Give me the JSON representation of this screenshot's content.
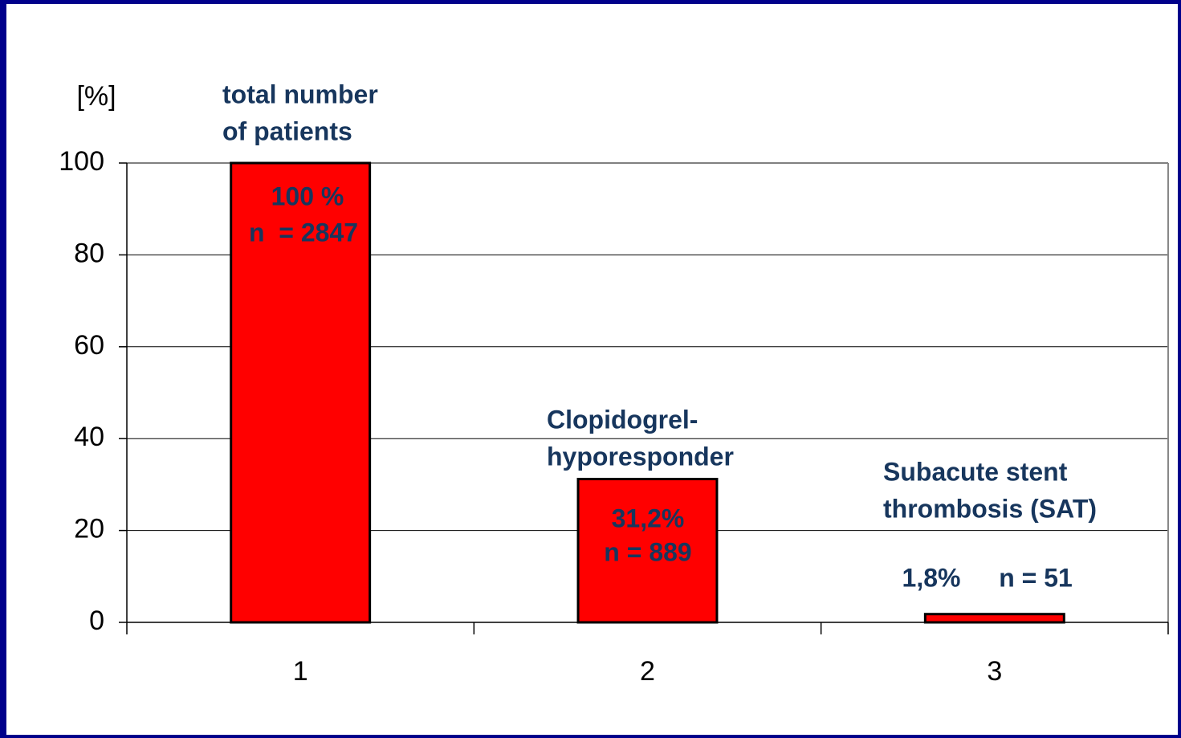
{
  "chart_data": {
    "type": "bar",
    "y_label": "[%]",
    "categories": [
      "1",
      "2",
      "3"
    ],
    "values": [
      100,
      31.2,
      1.8
    ],
    "value_labels": [
      "100 %",
      "31,2%",
      "1,8%"
    ],
    "n_labels": [
      "n  = 2847",
      "n = 889",
      "n = 51"
    ],
    "annotations": [
      [
        "total number",
        "of patients"
      ],
      [
        "Clopidogrel-",
        "hyporesponder"
      ],
      [
        "Subacute stent",
        "thrombosis (SAT)"
      ]
    ],
    "color": "#ff0000",
    "ylim": [
      0,
      100
    ],
    "yticks": [
      0,
      20,
      40,
      60,
      80,
      100
    ],
    "grid": true
  }
}
